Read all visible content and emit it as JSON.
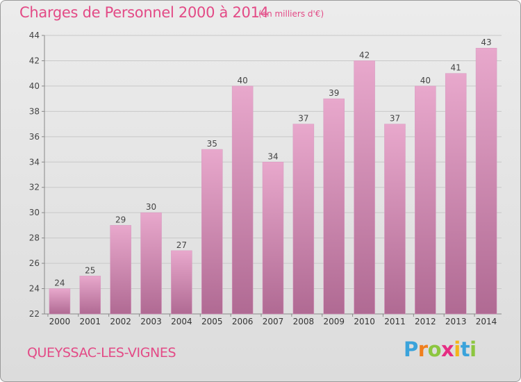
{
  "title": "Charges de Personnel 2000 à 2014",
  "subtitle": "(en milliers d'€)",
  "commune": "QUEYSSAC-LES-VIGNES",
  "logo": {
    "p": "P",
    "r": "r",
    "o": "o",
    "x": "x",
    "i": "i",
    "t": "t",
    "i2": "i"
  },
  "colors": {
    "title": "#e34a86",
    "bar_top": "#e8a8cc",
    "bar_bottom": "#b06a93",
    "grid": "#c8c8c8"
  },
  "chart_data": {
    "type": "bar",
    "categories": [
      "2000",
      "2001",
      "2002",
      "2003",
      "2004",
      "2005",
      "2006",
      "2007",
      "2008",
      "2009",
      "2010",
      "2011",
      "2012",
      "2013",
      "2014"
    ],
    "values": [
      24,
      25,
      29,
      30,
      27,
      35,
      40,
      34,
      37,
      39,
      42,
      37,
      40,
      41,
      43
    ],
    "ylim": [
      22,
      44
    ],
    "yticks": [
      22,
      24,
      26,
      28,
      30,
      32,
      34,
      36,
      38,
      40,
      42,
      44
    ],
    "grid": true,
    "data_labels": true
  }
}
